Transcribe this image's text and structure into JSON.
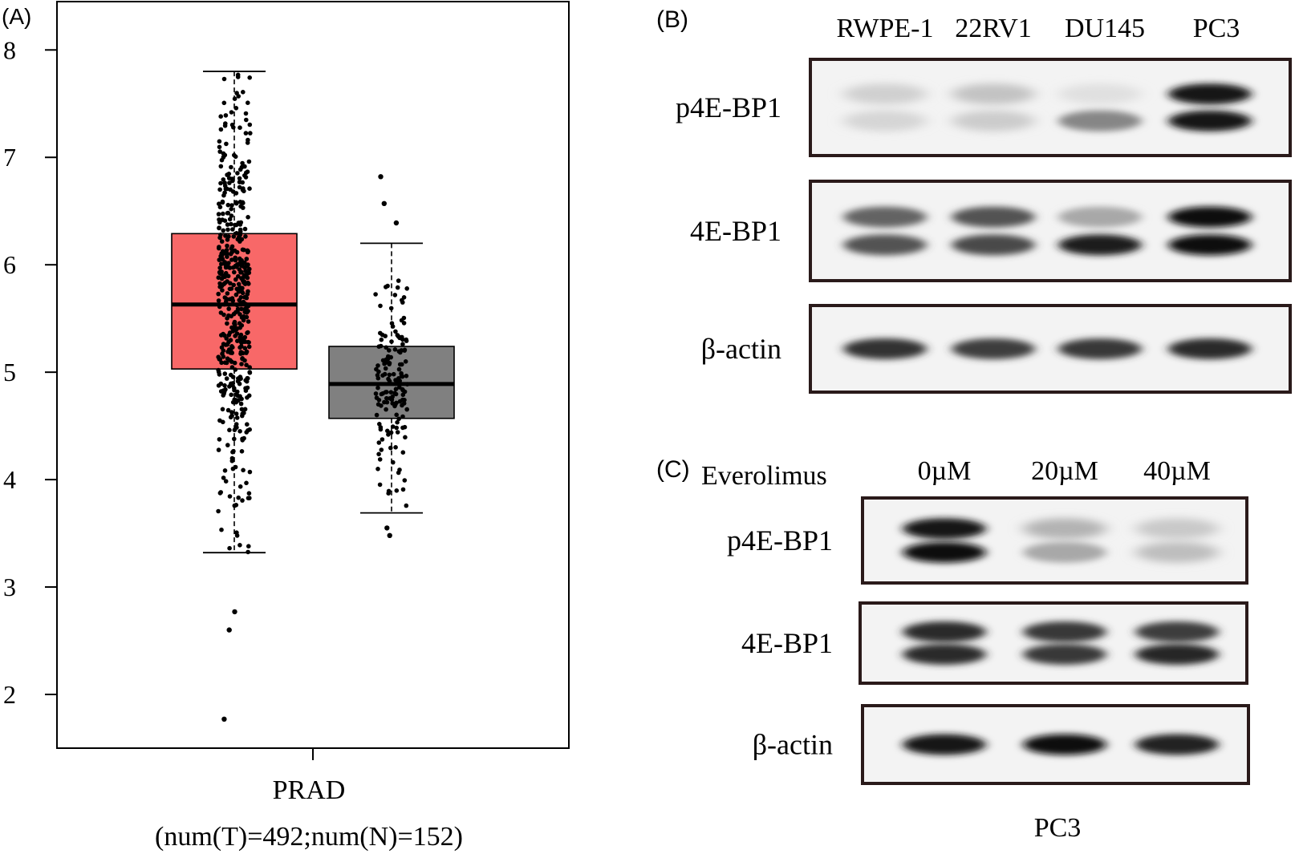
{
  "panel_a": {
    "label": "(A)",
    "chart_data": {
      "type": "box",
      "categories": [
        "PRAD"
      ],
      "xlabel": "PRAD",
      "xsublabel": "(num(T)=492;num(N)=152)",
      "yticks": [
        "2",
        "3",
        "4",
        "5",
        "6",
        "7",
        "8"
      ],
      "ylim": [
        1.5,
        8.45
      ],
      "series": [
        {
          "color": "#f86868",
          "whisker_low": 3.32,
          "q1": 5.03,
          "median": 5.63,
          "q3": 6.29,
          "whisker_high": 7.8,
          "outliers": [
            2.77,
            2.6,
            1.77
          ],
          "n": 492
        },
        {
          "color": "#808080",
          "whisker_low": 3.69,
          "q1": 4.57,
          "median": 4.89,
          "q3": 5.24,
          "whisker_high": 6.2,
          "outliers": [
            6.82,
            6.57,
            6.39,
            3.55,
            3.48
          ],
          "n": 152
        }
      ]
    }
  },
  "panel_b": {
    "label": "(B)",
    "lanes": [
      "RWPE-1",
      "22RV1",
      "DU145",
      "PC3"
    ],
    "rows": [
      {
        "label": "p4E-BP1",
        "bands": [
          [
            0.12,
            0.1
          ],
          [
            0.18,
            0.14
          ],
          [
            0.05,
            0.45
          ],
          [
            0.95,
            0.95
          ]
        ]
      },
      {
        "label": "4E-BP1",
        "bands": [
          [
            0.6,
            0.68
          ],
          [
            0.68,
            0.72
          ],
          [
            0.3,
            0.92
          ],
          [
            1.0,
            1.0
          ]
        ]
      },
      {
        "label": "β-actin",
        "bands": [
          [
            0.82
          ],
          [
            0.78
          ],
          [
            0.8
          ],
          [
            0.86
          ]
        ]
      }
    ]
  },
  "panel_c": {
    "label": "(C)",
    "treatment_label": "Everolimus",
    "lanes": [
      "0µM",
      "20µM",
      "40µM"
    ],
    "rows": [
      {
        "label": "p4E-BP1",
        "bands": [
          [
            0.95,
            0.98
          ],
          [
            0.25,
            0.3
          ],
          [
            0.15,
            0.2
          ]
        ]
      },
      {
        "label": "4E-BP1",
        "bands": [
          [
            0.85,
            0.85
          ],
          [
            0.8,
            0.8
          ],
          [
            0.78,
            0.88
          ]
        ]
      },
      {
        "label": "β-actin",
        "bands": [
          [
            0.95
          ],
          [
            0.98
          ],
          [
            0.9
          ]
        ]
      }
    ],
    "cell_line": "PC3"
  }
}
